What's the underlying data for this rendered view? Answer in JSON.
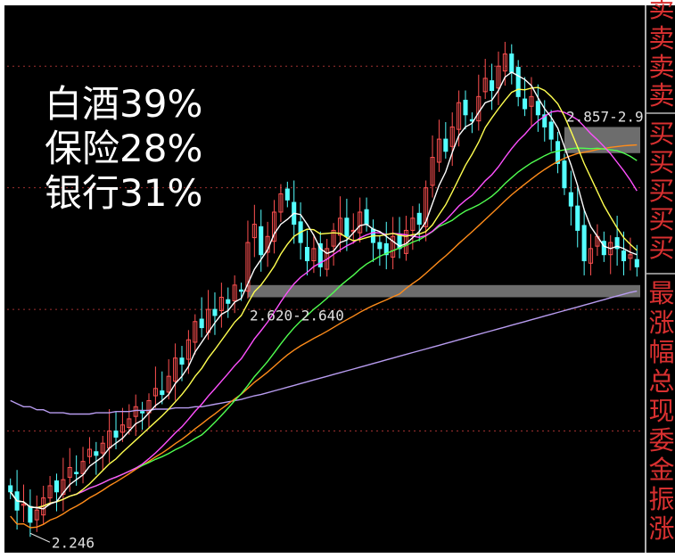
{
  "overlay": {
    "lines": [
      "白酒39%",
      "保险28%",
      "银行31%"
    ]
  },
  "side_panel": {
    "items": [
      "卖",
      "卖",
      "卖",
      "卖",
      "买",
      "买",
      "买",
      "买",
      "买",
      "最",
      "涨",
      "幅",
      "总",
      "现",
      "委",
      "金",
      "振",
      "涨"
    ]
  },
  "chart_data": {
    "type": "candlestick",
    "title": "",
    "xlabel": "",
    "ylabel": "",
    "ylim": [
      2.2,
      3.1
    ],
    "bars": 96,
    "low_label": "2.246",
    "zones": [
      {
        "label": "2.857-2.9",
        "low": 2.857,
        "high": 2.9
      },
      {
        "label": "2.620-2.640",
        "low": 2.62,
        "high": 2.64
      }
    ],
    "colors": {
      "up": "#ff5050",
      "down": "#54ffff",
      "ma5": "#ffffff",
      "ma10": "#ffff50",
      "ma20": "#ff50ff",
      "ma30": "#50ff50",
      "ma60": "#ff8c1a",
      "ma120": "#b89cf0",
      "zone": "#808080",
      "grid": "#a03030"
    },
    "closes": [
      2.3,
      2.27,
      2.28,
      2.25,
      2.27,
      2.29,
      2.31,
      2.3,
      2.32,
      2.34,
      2.33,
      2.35,
      2.37,
      2.36,
      2.38,
      2.4,
      2.39,
      2.41,
      2.42,
      2.44,
      2.43,
      2.45,
      2.47,
      2.46,
      2.49,
      2.52,
      2.51,
      2.55,
      2.58,
      2.57,
      2.6,
      2.59,
      2.62,
      2.61,
      2.64,
      2.63,
      2.71,
      2.74,
      2.69,
      2.72,
      2.76,
      2.79,
      2.78,
      2.74,
      2.71,
      2.68,
      2.7,
      2.67,
      2.7,
      2.73,
      2.75,
      2.72,
      2.73,
      2.76,
      2.74,
      2.71,
      2.7,
      2.69,
      2.72,
      2.7,
      2.73,
      2.75,
      2.74,
      2.8,
      2.85,
      2.88,
      2.86,
      2.9,
      2.94,
      2.92,
      2.91,
      2.95,
      2.98,
      2.96,
      3.0,
      3.02,
      2.99,
      2.95,
      2.93,
      2.95,
      2.92,
      2.9,
      2.88,
      2.84,
      2.8,
      2.77,
      2.73,
      2.68,
      2.7,
      2.72,
      2.69,
      2.71,
      2.7,
      2.68,
      2.69,
      2.67
    ],
    "ma120": [
      2.45,
      2.445,
      2.44,
      2.44,
      2.435,
      2.435,
      2.43,
      2.43,
      2.43,
      2.428,
      2.428,
      2.428,
      2.428,
      2.43,
      2.43,
      2.43,
      2.432,
      2.432,
      2.432,
      2.434,
      2.434,
      2.434,
      2.436,
      2.436,
      2.436,
      2.438,
      2.438,
      2.438,
      2.44,
      2.44,
      2.442,
      2.444,
      2.446,
      2.448,
      2.45,
      2.452,
      2.455,
      2.458,
      2.46,
      2.463,
      2.466,
      2.469,
      2.472,
      2.475,
      2.478,
      2.481,
      2.484,
      2.487,
      2.49,
      2.493,
      2.496,
      2.499,
      2.502,
      2.505,
      2.508,
      2.511,
      2.514,
      2.517,
      2.52,
      2.523,
      2.526,
      2.529,
      2.532,
      2.535,
      2.538,
      2.541,
      2.544,
      2.547,
      2.55,
      2.553,
      2.556,
      2.559,
      2.562,
      2.565,
      2.568,
      2.571,
      2.574,
      2.577,
      2.58,
      2.583,
      2.586,
      2.589,
      2.592,
      2.595,
      2.598,
      2.601,
      2.604,
      2.607,
      2.61,
      2.613,
      2.616,
      2.619,
      2.622,
      2.625,
      2.628,
      2.63
    ]
  }
}
